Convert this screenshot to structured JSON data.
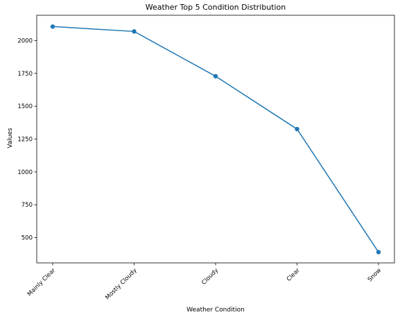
{
  "chart_data": {
    "type": "line",
    "title": "Weather Top 5 Condition Distribution",
    "xlabel": "Weather Condition",
    "ylabel": "Values",
    "categories": [
      "Mainly Clear",
      "Mostly Cloudy",
      "Cloudy",
      "Clear",
      "Snow"
    ],
    "series": [
      {
        "values": [
          2106,
          2069,
          1728,
          1326,
          390
        ],
        "color": "#1f77b4"
      }
    ],
    "ylim": [
      308,
      2192
    ],
    "yticks": [
      500,
      750,
      1000,
      1250,
      1500,
      1750,
      2000
    ],
    "grid": false,
    "legend": "none"
  }
}
